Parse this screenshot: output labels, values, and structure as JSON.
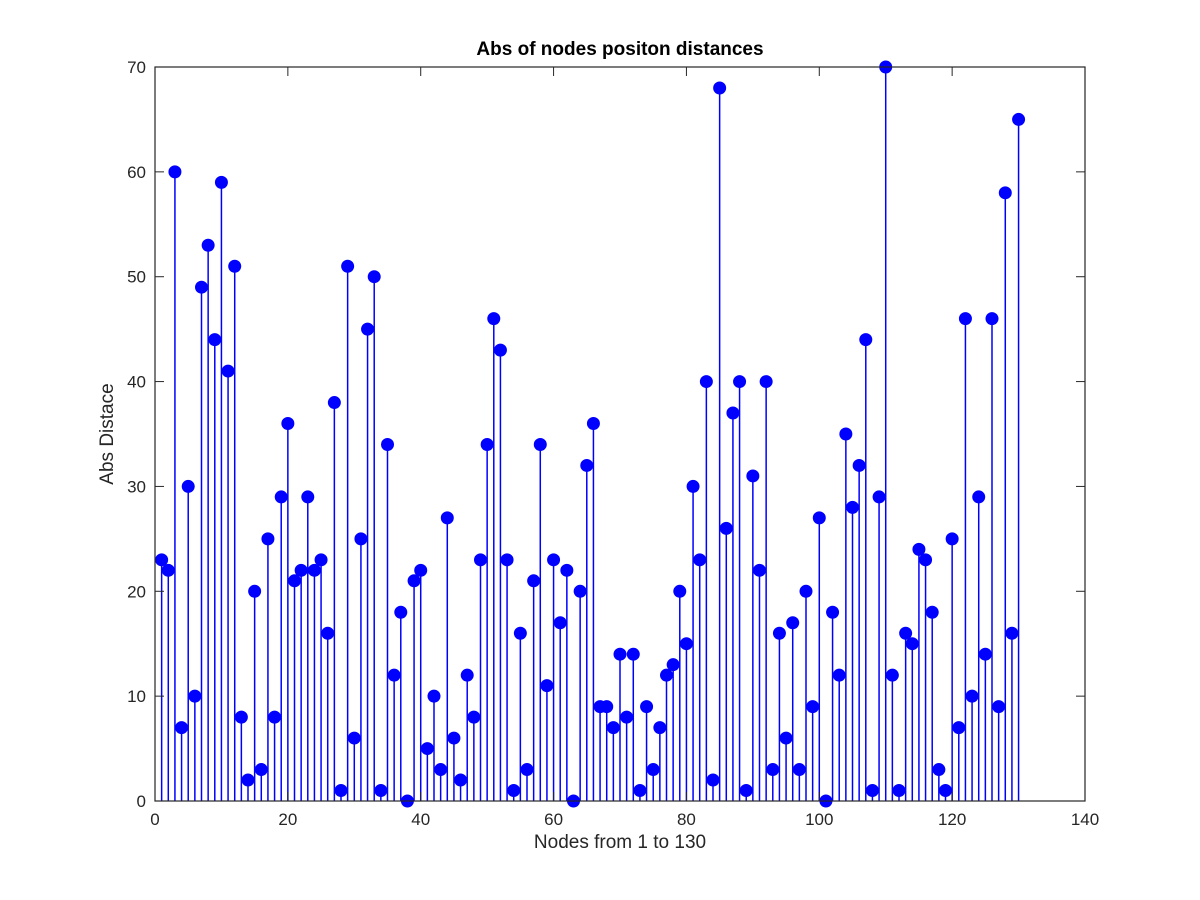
{
  "chart_data": {
    "type": "stem",
    "title": "Abs of nodes positon distances",
    "xlabel": "Nodes from 1 to 130",
    "ylabel": "Abs Distace",
    "xlim": [
      0,
      140
    ],
    "ylim": [
      0,
      70
    ],
    "xticks": [
      0,
      20,
      40,
      60,
      80,
      100,
      120,
      140
    ],
    "yticks": [
      0,
      10,
      20,
      30,
      40,
      50,
      60,
      70
    ],
    "grid": false,
    "color": "#0000ff",
    "x": [
      1,
      2,
      3,
      4,
      5,
      6,
      7,
      8,
      9,
      10,
      11,
      12,
      13,
      14,
      15,
      16,
      17,
      18,
      19,
      20,
      21,
      22,
      23,
      24,
      25,
      26,
      27,
      28,
      29,
      30,
      31,
      32,
      33,
      34,
      35,
      36,
      37,
      38,
      39,
      40,
      41,
      42,
      43,
      44,
      45,
      46,
      47,
      48,
      49,
      50,
      51,
      52,
      53,
      54,
      55,
      56,
      57,
      58,
      59,
      60,
      61,
      62,
      63,
      64,
      65,
      66,
      67,
      68,
      69,
      70,
      71,
      72,
      73,
      74,
      75,
      76,
      77,
      78,
      79,
      80,
      81,
      82,
      83,
      84,
      85,
      86,
      87,
      88,
      89,
      90,
      91,
      92,
      93,
      94,
      95,
      96,
      97,
      98,
      99,
      100,
      101,
      102,
      103,
      104,
      105,
      106,
      107,
      108,
      109,
      110,
      111,
      112,
      113,
      114,
      115,
      116,
      117,
      118,
      119,
      120,
      121,
      122,
      123,
      124,
      125,
      126,
      127,
      128,
      129,
      130
    ],
    "y": [
      23,
      22,
      60,
      7,
      30,
      10,
      49,
      53,
      44,
      59,
      41,
      51,
      8,
      2,
      20,
      3,
      25,
      8,
      29,
      36,
      21,
      22,
      29,
      22,
      23,
      16,
      38,
      1,
      51,
      6,
      25,
      45,
      50,
      1,
      34,
      12,
      18,
      0,
      21,
      22,
      5,
      10,
      3,
      27,
      6,
      2,
      12,
      8,
      23,
      34,
      46,
      43,
      23,
      1,
      16,
      3,
      21,
      34,
      11,
      23,
      17,
      22,
      0,
      20,
      32,
      36,
      9,
      9,
      7,
      14,
      8,
      14,
      1,
      9,
      3,
      7,
      12,
      13,
      20,
      15,
      30,
      23,
      40,
      2,
      68,
      26,
      37,
      40,
      1,
      31,
      22,
      40,
      3,
      16,
      6,
      17,
      3,
      20,
      9,
      27,
      0,
      18,
      12,
      35,
      28,
      32,
      44,
      1,
      29,
      70,
      12,
      1,
      16,
      15,
      24,
      23,
      18,
      3,
      1,
      25,
      7,
      46,
      10,
      29,
      14,
      46,
      9,
      58,
      16,
      65
    ]
  }
}
